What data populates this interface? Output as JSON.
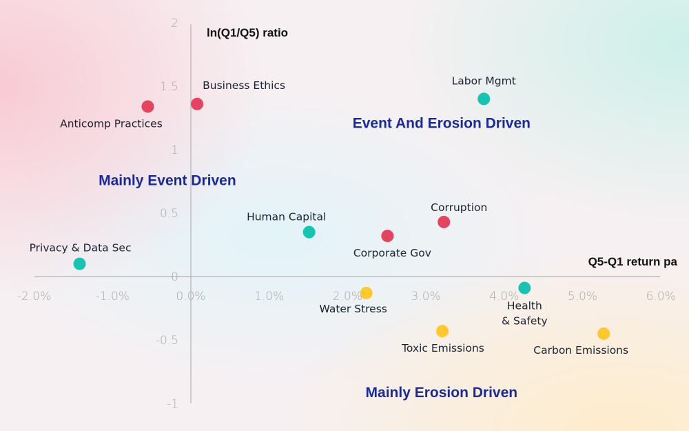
{
  "chart_data": {
    "type": "scatter",
    "title": "",
    "xlabel": "Q5-Q1 return pa",
    "ylabel": "ln(Q1/Q5) ratio",
    "xlim": [
      -2.0,
      6.0
    ],
    "ylim": [
      -1,
      2
    ],
    "x_unit": "%",
    "x_ticks": [
      -2.0,
      -1.0,
      0.0,
      1.0,
      2.0,
      3.0,
      4.0,
      5.0,
      6.0
    ],
    "x_tick_labels": [
      "-2.0%",
      "-1.0%",
      "0.0%",
      "1.0%",
      "2.0%",
      "3.0%",
      "4.0%",
      "5.0%",
      "6.0%"
    ],
    "y_ticks": [
      -1,
      -0.5,
      0,
      0.5,
      1,
      1.5,
      2
    ],
    "y_tick_labels": [
      "-1",
      "-0.5",
      "0",
      "0.5",
      "1",
      "1.5",
      "2"
    ],
    "grid": false,
    "legend": "none",
    "categories_colors": {
      "red": "#e5435f",
      "teal": "#17c3b2",
      "yellow": "#ffc82c"
    },
    "quadrant_labels": [
      {
        "text": "Event And Erosion Driven",
        "x": 3.2,
        "y": 1.17
      },
      {
        "text": "Mainly Event Driven",
        "x": -0.3,
        "y": 0.72
      },
      {
        "text": "Mainly Erosion Driven",
        "x": 3.2,
        "y": -0.95
      }
    ],
    "quadrant_label_color": "#1a2a9c",
    "points": [
      {
        "label": "Anticomp Practices",
        "x": -0.55,
        "y": 1.34,
        "color": "red",
        "label_pos": "below-left"
      },
      {
        "label": "Business Ethics",
        "x": 0.08,
        "y": 1.36,
        "color": "red",
        "label_pos": "above-right"
      },
      {
        "label": "Labor Mgmt",
        "x": 3.74,
        "y": 1.4,
        "color": "teal",
        "label_pos": "above"
      },
      {
        "label": "Privacy & Data Sec",
        "x": -1.42,
        "y": 0.1,
        "color": "teal",
        "label_pos": "above"
      },
      {
        "label": "Human Capital",
        "x": 1.51,
        "y": 0.35,
        "color": "teal",
        "label_pos": "above-left"
      },
      {
        "label": "Corporate Gov",
        "x": 2.51,
        "y": 0.32,
        "color": "red",
        "label_pos": "below"
      },
      {
        "label": "Corruption",
        "x": 3.23,
        "y": 0.43,
        "color": "red",
        "label_pos": "above-right"
      },
      {
        "label": "Water Stress",
        "x": 2.24,
        "y": -0.13,
        "color": "yellow",
        "label_pos": "below-left"
      },
      {
        "label": "Health\n& Safety",
        "x": 4.26,
        "y": -0.09,
        "color": "teal",
        "label_pos": "below"
      },
      {
        "label": "Toxic Emissions",
        "x": 3.21,
        "y": -0.43,
        "color": "yellow",
        "label_pos": "below"
      },
      {
        "label": "Carbon Emissions",
        "x": 5.27,
        "y": -0.45,
        "color": "yellow",
        "label_pos": "below-left"
      }
    ]
  }
}
